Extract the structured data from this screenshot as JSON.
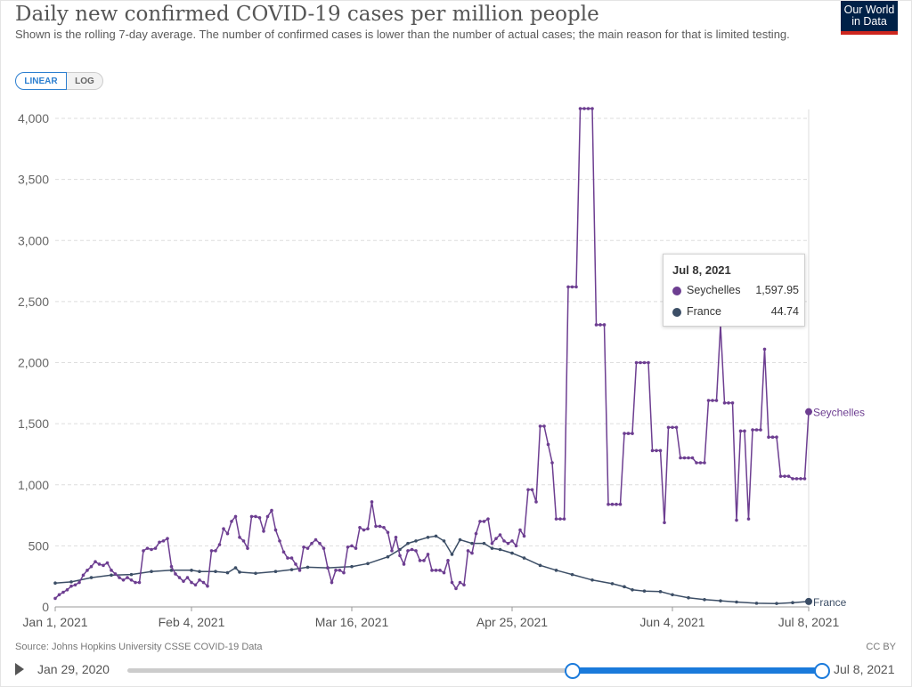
{
  "header": {
    "title": "Daily new confirmed COVID-19 cases per million people",
    "subtitle": "Shown is the rolling 7-day average. The number of confirmed cases is lower than the number of actual cases; the main reason for that is limited testing.",
    "logo_line1": "Our World",
    "logo_line2": "in Data"
  },
  "controls": {
    "linear_label": "LINEAR",
    "log_label": "LOG",
    "selected": "LINEAR"
  },
  "footer": {
    "source": "Source: Johns Hopkins University CSSE COVID-19 Data",
    "license": "CC BY"
  },
  "timeline": {
    "start_label": "Jan 29, 2020",
    "end_label": "Jul 8, 2021"
  },
  "tooltip": {
    "date": "Jul 8, 2021",
    "rows": [
      {
        "name": "Seychelles",
        "value": "1,597.95"
      },
      {
        "name": "France",
        "value": "44.74"
      }
    ]
  },
  "colors": {
    "seychelles": "#6d3e91",
    "france": "#3c4e66",
    "grid": "#dddddd",
    "accent": "#1a7adb"
  },
  "chart_data": {
    "type": "line",
    "title": "Daily new confirmed COVID-19 cases per million people",
    "ylim": [
      0,
      4100
    ],
    "yticks": [
      0,
      500,
      1000,
      1500,
      2000,
      2500,
      3000,
      3500,
      4000
    ],
    "ytick_labels": [
      "0",
      "500",
      "1,000",
      "1,500",
      "2,000",
      "2,500",
      "3,000",
      "3,500",
      "4,000"
    ],
    "x_start": "2021-01-01",
    "x_end": "2021-07-08",
    "xticks": [
      {
        "date": "2021-01-01",
        "label": "Jan 1, 2021"
      },
      {
        "date": "2021-02-04",
        "label": "Feb 4, 2021"
      },
      {
        "date": "2021-03-16",
        "label": "Mar 16, 2021"
      },
      {
        "date": "2021-04-25",
        "label": "Apr 25, 2021"
      },
      {
        "date": "2021-06-04",
        "label": "Jun 4, 2021"
      },
      {
        "date": "2021-07-08",
        "label": "Jul 8, 2021"
      }
    ],
    "grid": "horizontal dashed",
    "series": [
      {
        "name": "Seychelles",
        "label": "Seychelles",
        "points": [
          [
            "2021-01-01",
            70
          ],
          [
            "2021-01-02",
            100
          ],
          [
            "2021-01-03",
            120
          ],
          [
            "2021-01-04",
            140
          ],
          [
            "2021-01-05",
            170
          ],
          [
            "2021-01-06",
            180
          ],
          [
            "2021-01-07",
            200
          ],
          [
            "2021-01-08",
            260
          ],
          [
            "2021-01-09",
            300
          ],
          [
            "2021-01-10",
            330
          ],
          [
            "2021-01-11",
            370
          ],
          [
            "2021-01-12",
            350
          ],
          [
            "2021-01-13",
            340
          ],
          [
            "2021-01-14",
            360
          ],
          [
            "2021-01-15",
            300
          ],
          [
            "2021-01-16",
            270
          ],
          [
            "2021-01-17",
            240
          ],
          [
            "2021-01-18",
            220
          ],
          [
            "2021-01-19",
            240
          ],
          [
            "2021-01-20",
            220
          ],
          [
            "2021-01-21",
            200
          ],
          [
            "2021-01-22",
            200
          ],
          [
            "2021-01-23",
            460
          ],
          [
            "2021-01-24",
            480
          ],
          [
            "2021-01-25",
            470
          ],
          [
            "2021-01-26",
            480
          ],
          [
            "2021-01-27",
            530
          ],
          [
            "2021-01-28",
            540
          ],
          [
            "2021-01-29",
            560
          ],
          [
            "2021-01-30",
            330
          ],
          [
            "2021-01-31",
            270
          ],
          [
            "2021-02-01",
            240
          ],
          [
            "2021-02-02",
            210
          ],
          [
            "2021-02-03",
            240
          ],
          [
            "2021-02-04",
            200
          ],
          [
            "2021-02-05",
            180
          ],
          [
            "2021-02-06",
            220
          ],
          [
            "2021-02-07",
            200
          ],
          [
            "2021-02-08",
            170
          ],
          [
            "2021-02-09",
            460
          ],
          [
            "2021-02-10",
            460
          ],
          [
            "2021-02-11",
            510
          ],
          [
            "2021-02-12",
            640
          ],
          [
            "2021-02-13",
            600
          ],
          [
            "2021-02-14",
            700
          ],
          [
            "2021-02-15",
            740
          ],
          [
            "2021-02-16",
            570
          ],
          [
            "2021-02-17",
            540
          ],
          [
            "2021-02-18",
            480
          ],
          [
            "2021-02-19",
            740
          ],
          [
            "2021-02-20",
            740
          ],
          [
            "2021-02-21",
            730
          ],
          [
            "2021-02-22",
            620
          ],
          [
            "2021-02-23",
            740
          ],
          [
            "2021-02-24",
            790
          ],
          [
            "2021-02-25",
            630
          ],
          [
            "2021-02-26",
            540
          ],
          [
            "2021-02-27",
            450
          ],
          [
            "2021-02-28",
            400
          ],
          [
            "2021-03-01",
            400
          ],
          [
            "2021-03-02",
            350
          ],
          [
            "2021-03-03",
            300
          ],
          [
            "2021-03-04",
            490
          ],
          [
            "2021-03-05",
            480
          ],
          [
            "2021-03-06",
            520
          ],
          [
            "2021-03-07",
            550
          ],
          [
            "2021-03-08",
            520
          ],
          [
            "2021-03-09",
            480
          ],
          [
            "2021-03-10",
            320
          ],
          [
            "2021-03-11",
            200
          ],
          [
            "2021-03-12",
            300
          ],
          [
            "2021-03-13",
            300
          ],
          [
            "2021-03-14",
            280
          ],
          [
            "2021-03-15",
            490
          ],
          [
            "2021-03-16",
            500
          ],
          [
            "2021-03-17",
            480
          ],
          [
            "2021-03-18",
            650
          ],
          [
            "2021-03-19",
            630
          ],
          [
            "2021-03-20",
            640
          ],
          [
            "2021-03-21",
            860
          ],
          [
            "2021-03-22",
            660
          ],
          [
            "2021-03-23",
            660
          ],
          [
            "2021-03-24",
            650
          ],
          [
            "2021-03-25",
            610
          ],
          [
            "2021-03-26",
            460
          ],
          [
            "2021-03-27",
            570
          ],
          [
            "2021-03-28",
            420
          ],
          [
            "2021-03-29",
            350
          ],
          [
            "2021-03-30",
            460
          ],
          [
            "2021-03-31",
            470
          ],
          [
            "2021-04-01",
            460
          ],
          [
            "2021-04-02",
            380
          ],
          [
            "2021-04-03",
            380
          ],
          [
            "2021-04-04",
            430
          ],
          [
            "2021-04-05",
            300
          ],
          [
            "2021-04-06",
            300
          ],
          [
            "2021-04-07",
            300
          ],
          [
            "2021-04-08",
            280
          ],
          [
            "2021-04-09",
            380
          ],
          [
            "2021-04-10",
            200
          ],
          [
            "2021-04-11",
            150
          ],
          [
            "2021-04-12",
            200
          ],
          [
            "2021-04-13",
            180
          ],
          [
            "2021-04-14",
            460
          ],
          [
            "2021-04-15",
            440
          ],
          [
            "2021-04-16",
            600
          ],
          [
            "2021-04-17",
            700
          ],
          [
            "2021-04-18",
            700
          ],
          [
            "2021-04-19",
            720
          ],
          [
            "2021-04-20",
            520
          ],
          [
            "2021-04-21",
            560
          ],
          [
            "2021-04-22",
            590
          ],
          [
            "2021-04-23",
            540
          ],
          [
            "2021-04-24",
            520
          ],
          [
            "2021-04-25",
            540
          ],
          [
            "2021-04-26",
            500
          ],
          [
            "2021-04-27",
            630
          ],
          [
            "2021-04-28",
            580
          ],
          [
            "2021-04-29",
            960
          ],
          [
            "2021-04-30",
            960
          ],
          [
            "2021-05-01",
            860
          ],
          [
            "2021-05-02",
            1480
          ],
          [
            "2021-05-03",
            1480
          ],
          [
            "2021-05-04",
            1330
          ],
          [
            "2021-05-05",
            1180
          ],
          [
            "2021-05-06",
            720
          ],
          [
            "2021-05-07",
            720
          ],
          [
            "2021-05-08",
            720
          ],
          [
            "2021-05-09",
            2620
          ],
          [
            "2021-05-10",
            2620
          ],
          [
            "2021-05-11",
            2620
          ],
          [
            "2021-05-12",
            4080
          ],
          [
            "2021-05-13",
            4080
          ],
          [
            "2021-05-14",
            4080
          ],
          [
            "2021-05-15",
            4080
          ],
          [
            "2021-05-16",
            2310
          ],
          [
            "2021-05-17",
            2310
          ],
          [
            "2021-05-18",
            2310
          ],
          [
            "2021-05-19",
            840
          ],
          [
            "2021-05-20",
            840
          ],
          [
            "2021-05-21",
            840
          ],
          [
            "2021-05-22",
            840
          ],
          [
            "2021-05-23",
            1420
          ],
          [
            "2021-05-24",
            1420
          ],
          [
            "2021-05-25",
            1420
          ],
          [
            "2021-05-26",
            2000
          ],
          [
            "2021-05-27",
            2000
          ],
          [
            "2021-05-28",
            2000
          ],
          [
            "2021-05-29",
            2000
          ],
          [
            "2021-05-30",
            1280
          ],
          [
            "2021-05-31",
            1280
          ],
          [
            "2021-06-01",
            1280
          ],
          [
            "2021-06-02",
            690
          ],
          [
            "2021-06-03",
            1470
          ],
          [
            "2021-06-04",
            1470
          ],
          [
            "2021-06-05",
            1470
          ],
          [
            "2021-06-06",
            1220
          ],
          [
            "2021-06-07",
            1220
          ],
          [
            "2021-06-08",
            1220
          ],
          [
            "2021-06-09",
            1220
          ],
          [
            "2021-06-10",
            1180
          ],
          [
            "2021-06-11",
            1180
          ],
          [
            "2021-06-12",
            1180
          ],
          [
            "2021-06-13",
            1690
          ],
          [
            "2021-06-14",
            1690
          ],
          [
            "2021-06-15",
            1690
          ],
          [
            "2021-06-16",
            2310
          ],
          [
            "2021-06-17",
            1670
          ],
          [
            "2021-06-18",
            1670
          ],
          [
            "2021-06-19",
            1670
          ],
          [
            "2021-06-20",
            710
          ],
          [
            "2021-06-21",
            1440
          ],
          [
            "2021-06-22",
            1440
          ],
          [
            "2021-06-23",
            720
          ],
          [
            "2021-06-24",
            1450
          ],
          [
            "2021-06-25",
            1450
          ],
          [
            "2021-06-26",
            1450
          ],
          [
            "2021-06-27",
            2110
          ],
          [
            "2021-06-28",
            1390
          ],
          [
            "2021-06-29",
            1390
          ],
          [
            "2021-06-30",
            1390
          ],
          [
            "2021-07-01",
            1070
          ],
          [
            "2021-07-02",
            1070
          ],
          [
            "2021-07-03",
            1070
          ],
          [
            "2021-07-04",
            1050
          ],
          [
            "2021-07-05",
            1050
          ],
          [
            "2021-07-06",
            1050
          ],
          [
            "2021-07-07",
            1050
          ],
          [
            "2021-07-08",
            1597.95
          ]
        ]
      },
      {
        "name": "France",
        "label": "France",
        "points": [
          [
            "2021-01-01",
            195
          ],
          [
            "2021-01-05",
            205
          ],
          [
            "2021-01-10",
            240
          ],
          [
            "2021-01-15",
            260
          ],
          [
            "2021-01-20",
            265
          ],
          [
            "2021-01-25",
            290
          ],
          [
            "2021-01-30",
            300
          ],
          [
            "2021-02-04",
            300
          ],
          [
            "2021-02-06",
            290
          ],
          [
            "2021-02-10",
            290
          ],
          [
            "2021-02-13",
            280
          ],
          [
            "2021-02-15",
            320
          ],
          [
            "2021-02-16",
            285
          ],
          [
            "2021-02-20",
            275
          ],
          [
            "2021-02-25",
            290
          ],
          [
            "2021-03-01",
            305
          ],
          [
            "2021-03-05",
            325
          ],
          [
            "2021-03-10",
            320
          ],
          [
            "2021-03-16",
            330
          ],
          [
            "2021-03-20",
            355
          ],
          [
            "2021-03-25",
            410
          ],
          [
            "2021-03-28",
            470
          ],
          [
            "2021-03-30",
            520
          ],
          [
            "2021-04-01",
            540
          ],
          [
            "2021-04-04",
            570
          ],
          [
            "2021-04-06",
            580
          ],
          [
            "2021-04-08",
            540
          ],
          [
            "2021-04-10",
            430
          ],
          [
            "2021-04-12",
            550
          ],
          [
            "2021-04-15",
            520
          ],
          [
            "2021-04-18",
            520
          ],
          [
            "2021-04-20",
            480
          ],
          [
            "2021-04-22",
            470
          ],
          [
            "2021-04-25",
            440
          ],
          [
            "2021-04-28",
            400
          ],
          [
            "2021-05-02",
            340
          ],
          [
            "2021-05-06",
            300
          ],
          [
            "2021-05-10",
            265
          ],
          [
            "2021-05-15",
            220
          ],
          [
            "2021-05-20",
            190
          ],
          [
            "2021-05-23",
            165
          ],
          [
            "2021-05-25",
            140
          ],
          [
            "2021-05-28",
            130
          ],
          [
            "2021-06-01",
            125
          ],
          [
            "2021-06-04",
            100
          ],
          [
            "2021-06-08",
            75
          ],
          [
            "2021-06-12",
            60
          ],
          [
            "2021-06-16",
            50
          ],
          [
            "2021-06-20",
            40
          ],
          [
            "2021-06-25",
            30
          ],
          [
            "2021-06-30",
            28
          ],
          [
            "2021-07-04",
            35
          ],
          [
            "2021-07-08",
            44.74
          ]
        ]
      }
    ]
  }
}
